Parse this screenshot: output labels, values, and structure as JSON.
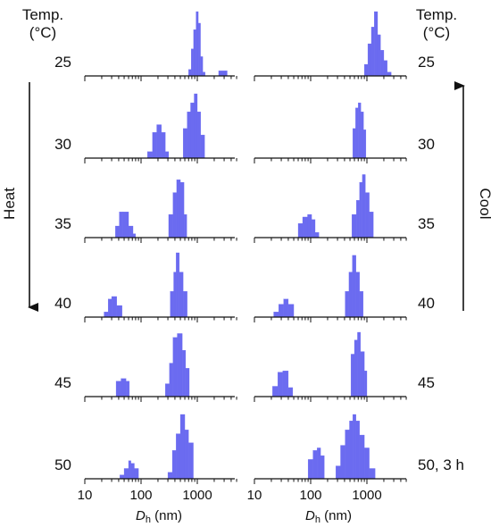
{
  "left_header": {
    "line1": "Temp.",
    "line2": "(°C)"
  },
  "right_header": {
    "line1": "Temp.",
    "line2": "(°C)"
  },
  "heat_label": "Heat",
  "cool_label": "Cool",
  "bar_color": "#6b6bf0",
  "chart_data": {
    "type": "bar",
    "xscale": "log",
    "xlim": [
      10,
      5000
    ],
    "xticks": [
      10,
      100,
      1000
    ],
    "tick_labels": [
      "10",
      "100",
      "1000"
    ],
    "xlabel_italic": "D",
    "xlabel_sub": "h",
    "xlabel_unit": " (nm)",
    "panels": [
      {
        "side": "left",
        "label": "25",
        "bars": [
          {
            "x0": 700,
            "x1": 780,
            "h": 0.1
          },
          {
            "x0": 780,
            "x1": 860,
            "h": 0.42
          },
          {
            "x0": 860,
            "x1": 950,
            "h": 0.72
          },
          {
            "x0": 950,
            "x1": 1040,
            "h": 1.0
          },
          {
            "x0": 1040,
            "x1": 1140,
            "h": 0.82
          },
          {
            "x0": 1140,
            "x1": 1250,
            "h": 0.3
          },
          {
            "x0": 1250,
            "x1": 1380,
            "h": 0.06
          },
          {
            "x0": 2400,
            "x1": 3400,
            "h": 0.08
          }
        ]
      },
      {
        "side": "left",
        "label": "30",
        "bars": [
          {
            "x0": 130,
            "x1": 160,
            "h": 0.1
          },
          {
            "x0": 160,
            "x1": 190,
            "h": 0.4
          },
          {
            "x0": 190,
            "x1": 230,
            "h": 0.52
          },
          {
            "x0": 230,
            "x1": 270,
            "h": 0.4
          },
          {
            "x0": 270,
            "x1": 310,
            "h": 0.1
          },
          {
            "x0": 560,
            "x1": 660,
            "h": 0.46
          },
          {
            "x0": 660,
            "x1": 760,
            "h": 0.72
          },
          {
            "x0": 760,
            "x1": 880,
            "h": 0.86
          },
          {
            "x0": 880,
            "x1": 1000,
            "h": 1.0
          },
          {
            "x0": 1000,
            "x1": 1150,
            "h": 0.72
          },
          {
            "x0": 1150,
            "x1": 1350,
            "h": 0.36
          }
        ]
      },
      {
        "side": "left",
        "label": "35",
        "bars": [
          {
            "x0": 35,
            "x1": 41,
            "h": 0.18
          },
          {
            "x0": 41,
            "x1": 48,
            "h": 0.4
          },
          {
            "x0": 48,
            "x1": 60,
            "h": 0.4
          },
          {
            "x0": 60,
            "x1": 72,
            "h": 0.18
          },
          {
            "x0": 72,
            "x1": 80,
            "h": 0.06
          },
          {
            "x0": 310,
            "x1": 370,
            "h": 0.36
          },
          {
            "x0": 370,
            "x1": 430,
            "h": 0.7
          },
          {
            "x0": 430,
            "x1": 500,
            "h": 0.9
          },
          {
            "x0": 500,
            "x1": 580,
            "h": 0.86
          },
          {
            "x0": 580,
            "x1": 650,
            "h": 0.36
          }
        ]
      },
      {
        "side": "left",
        "label": "40",
        "bars": [
          {
            "x0": 22,
            "x1": 26,
            "h": 0.08
          },
          {
            "x0": 26,
            "x1": 30,
            "h": 0.28
          },
          {
            "x0": 30,
            "x1": 37,
            "h": 0.32
          },
          {
            "x0": 37,
            "x1": 46,
            "h": 0.18
          },
          {
            "x0": 330,
            "x1": 380,
            "h": 0.4
          },
          {
            "x0": 380,
            "x1": 420,
            "h": 0.7
          },
          {
            "x0": 420,
            "x1": 480,
            "h": 1.0
          },
          {
            "x0": 480,
            "x1": 560,
            "h": 0.7
          },
          {
            "x0": 560,
            "x1": 660,
            "h": 0.4
          }
        ]
      },
      {
        "side": "left",
        "label": "45",
        "bars": [
          {
            "x0": 36,
            "x1": 44,
            "h": 0.24
          },
          {
            "x0": 44,
            "x1": 54,
            "h": 0.28
          },
          {
            "x0": 54,
            "x1": 62,
            "h": 0.24
          },
          {
            "x0": 270,
            "x1": 320,
            "h": 0.2
          },
          {
            "x0": 320,
            "x1": 370,
            "h": 0.52
          },
          {
            "x0": 370,
            "x1": 440,
            "h": 0.92
          },
          {
            "x0": 440,
            "x1": 540,
            "h": 0.98
          },
          {
            "x0": 540,
            "x1": 620,
            "h": 0.72
          },
          {
            "x0": 620,
            "x1": 720,
            "h": 0.44
          }
        ]
      },
      {
        "side": "left",
        "label": "50",
        "bars": [
          {
            "x0": 42,
            "x1": 50,
            "h": 0.06
          },
          {
            "x0": 50,
            "x1": 60,
            "h": 0.16
          },
          {
            "x0": 60,
            "x1": 66,
            "h": 0.28
          },
          {
            "x0": 66,
            "x1": 76,
            "h": 0.24
          },
          {
            "x0": 76,
            "x1": 90,
            "h": 0.16
          },
          {
            "x0": 300,
            "x1": 360,
            "h": 0.1
          },
          {
            "x0": 360,
            "x1": 420,
            "h": 0.44
          },
          {
            "x0": 420,
            "x1": 500,
            "h": 0.7
          },
          {
            "x0": 500,
            "x1": 600,
            "h": 1.0
          },
          {
            "x0": 600,
            "x1": 700,
            "h": 0.76
          },
          {
            "x0": 700,
            "x1": 850,
            "h": 0.56
          }
        ]
      },
      {
        "side": "right",
        "label": "25",
        "bars": [
          {
            "x0": 900,
            "x1": 1040,
            "h": 0.18
          },
          {
            "x0": 1040,
            "x1": 1200,
            "h": 0.5
          },
          {
            "x0": 1200,
            "x1": 1350,
            "h": 0.76
          },
          {
            "x0": 1350,
            "x1": 1550,
            "h": 1.0
          },
          {
            "x0": 1550,
            "x1": 1750,
            "h": 0.64
          },
          {
            "x0": 1750,
            "x1": 2000,
            "h": 0.4
          },
          {
            "x0": 2000,
            "x1": 2300,
            "h": 0.24
          },
          {
            "x0": 2300,
            "x1": 2700,
            "h": 0.06
          }
        ]
      },
      {
        "side": "right",
        "label": "30",
        "bars": [
          {
            "x0": 560,
            "x1": 630,
            "h": 0.46
          },
          {
            "x0": 630,
            "x1": 700,
            "h": 0.78
          },
          {
            "x0": 700,
            "x1": 780,
            "h": 0.86
          },
          {
            "x0": 780,
            "x1": 870,
            "h": 0.72
          },
          {
            "x0": 870,
            "x1": 960,
            "h": 0.44
          }
        ]
      },
      {
        "side": "right",
        "label": "35",
        "bars": [
          {
            "x0": 60,
            "x1": 72,
            "h": 0.22
          },
          {
            "x0": 72,
            "x1": 88,
            "h": 0.32
          },
          {
            "x0": 88,
            "x1": 104,
            "h": 0.36
          },
          {
            "x0": 104,
            "x1": 120,
            "h": 0.28
          },
          {
            "x0": 120,
            "x1": 140,
            "h": 0.08
          },
          {
            "x0": 540,
            "x1": 650,
            "h": 0.36
          },
          {
            "x0": 650,
            "x1": 740,
            "h": 0.58
          },
          {
            "x0": 740,
            "x1": 830,
            "h": 0.86
          },
          {
            "x0": 830,
            "x1": 940,
            "h": 0.98
          },
          {
            "x0": 940,
            "x1": 1100,
            "h": 0.7
          },
          {
            "x0": 1100,
            "x1": 1300,
            "h": 0.4
          }
        ]
      },
      {
        "side": "right",
        "label": "40",
        "bars": [
          {
            "x0": 22,
            "x1": 27,
            "h": 0.08
          },
          {
            "x0": 27,
            "x1": 33,
            "h": 0.2
          },
          {
            "x0": 33,
            "x1": 40,
            "h": 0.28
          },
          {
            "x0": 40,
            "x1": 50,
            "h": 0.2
          },
          {
            "x0": 410,
            "x1": 480,
            "h": 0.4
          },
          {
            "x0": 480,
            "x1": 550,
            "h": 0.7
          },
          {
            "x0": 550,
            "x1": 640,
            "h": 0.96
          },
          {
            "x0": 640,
            "x1": 740,
            "h": 0.7
          },
          {
            "x0": 740,
            "x1": 860,
            "h": 0.4
          }
        ]
      },
      {
        "side": "right",
        "label": "45",
        "bars": [
          {
            "x0": 21,
            "x1": 26,
            "h": 0.16
          },
          {
            "x0": 26,
            "x1": 32,
            "h": 0.38
          },
          {
            "x0": 32,
            "x1": 40,
            "h": 0.4
          },
          {
            "x0": 40,
            "x1": 48,
            "h": 0.14
          },
          {
            "x0": 520,
            "x1": 600,
            "h": 0.66
          },
          {
            "x0": 600,
            "x1": 680,
            "h": 0.88
          },
          {
            "x0": 680,
            "x1": 770,
            "h": 1.0
          },
          {
            "x0": 770,
            "x1": 900,
            "h": 0.7
          },
          {
            "x0": 900,
            "x1": 1000,
            "h": 0.4
          }
        ]
      },
      {
        "side": "right",
        "label": "50, 3 h",
        "bars": [
          {
            "x0": 90,
            "x1": 110,
            "h": 0.3
          },
          {
            "x0": 110,
            "x1": 130,
            "h": 0.44
          },
          {
            "x0": 130,
            "x1": 150,
            "h": 0.48
          },
          {
            "x0": 150,
            "x1": 175,
            "h": 0.36
          },
          {
            "x0": 280,
            "x1": 340,
            "h": 0.2
          },
          {
            "x0": 340,
            "x1": 410,
            "h": 0.52
          },
          {
            "x0": 410,
            "x1": 490,
            "h": 0.76
          },
          {
            "x0": 490,
            "x1": 560,
            "h": 0.9
          },
          {
            "x0": 560,
            "x1": 640,
            "h": 1.0
          },
          {
            "x0": 640,
            "x1": 740,
            "h": 0.9
          },
          {
            "x0": 740,
            "x1": 900,
            "h": 0.68
          },
          {
            "x0": 900,
            "x1": 1100,
            "h": 0.48
          },
          {
            "x0": 1100,
            "x1": 1400,
            "h": 0.16
          }
        ]
      }
    ]
  }
}
